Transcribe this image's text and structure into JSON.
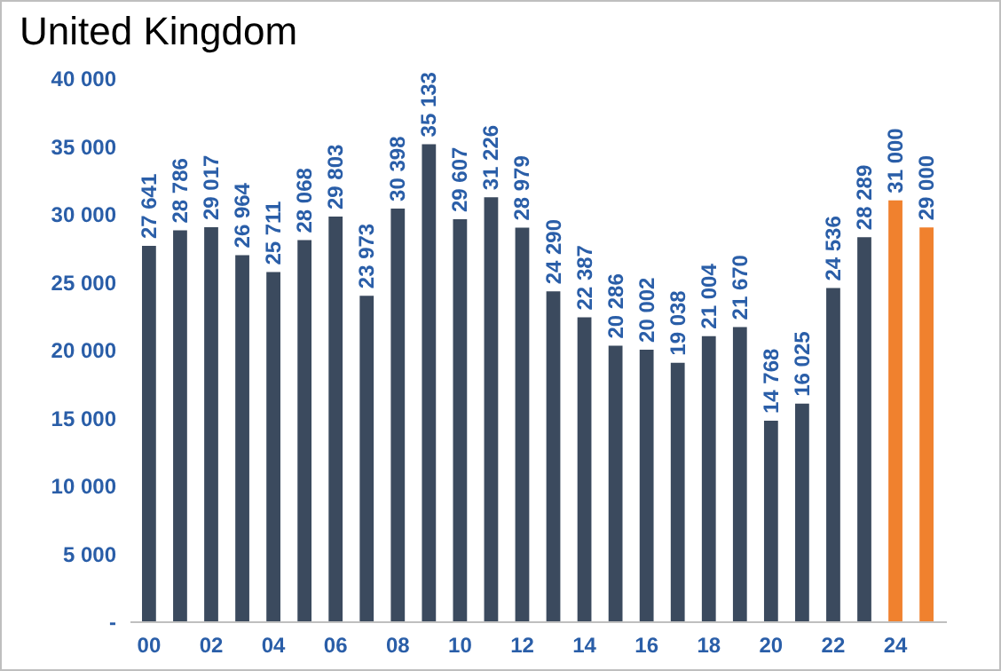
{
  "chart_data": {
    "type": "bar",
    "title": "United Kingdom",
    "categories": [
      "00",
      null,
      "02",
      null,
      "04",
      null,
      "06",
      null,
      "08",
      null,
      "10",
      null,
      "12",
      null,
      "14",
      null,
      "16",
      null,
      "18",
      null,
      "20",
      null,
      "22",
      null,
      "24",
      null
    ],
    "values": [
      27641,
      28786,
      29017,
      26964,
      25711,
      28068,
      29803,
      23973,
      30398,
      35133,
      29607,
      31226,
      28979,
      24290,
      22387,
      20286,
      20002,
      19038,
      21004,
      21670,
      14768,
      16025,
      24536,
      28289,
      31000,
      29000
    ],
    "value_labels": [
      "27 641",
      "28 786",
      "29 017",
      "26 964",
      "25 711",
      "28 068",
      "29 803",
      "23 973",
      "30 398",
      "35 133",
      "29 607",
      "31 226",
      "28 979",
      "24 290",
      "22 387",
      "20 286",
      "20 002",
      "19 038",
      "21 004",
      "21 670",
      "14 768",
      "16 025",
      "24 536",
      "28 289",
      "31 000",
      "29 000"
    ],
    "colors": [
      "#3b4a5e",
      "#3b4a5e",
      "#3b4a5e",
      "#3b4a5e",
      "#3b4a5e",
      "#3b4a5e",
      "#3b4a5e",
      "#3b4a5e",
      "#3b4a5e",
      "#3b4a5e",
      "#3b4a5e",
      "#3b4a5e",
      "#3b4a5e",
      "#3b4a5e",
      "#3b4a5e",
      "#3b4a5e",
      "#3b4a5e",
      "#3b4a5e",
      "#3b4a5e",
      "#3b4a5e",
      "#3b4a5e",
      "#3b4a5e",
      "#3b4a5e",
      "#3b4a5e",
      "#f0812e",
      "#f0812e"
    ],
    "ylim": [
      0,
      40000
    ],
    "yticks": [
      {
        "value": 0,
        "label": "-"
      },
      {
        "value": 5000,
        "label": "5 000"
      },
      {
        "value": 10000,
        "label": "10 000"
      },
      {
        "value": 15000,
        "label": "15 000"
      },
      {
        "value": 20000,
        "label": "20 000"
      },
      {
        "value": 25000,
        "label": "25 000"
      },
      {
        "value": 30000,
        "label": "30 000"
      },
      {
        "value": 35000,
        "label": "35 000"
      },
      {
        "value": 40000,
        "label": "40 000"
      }
    ],
    "grid": false
  }
}
